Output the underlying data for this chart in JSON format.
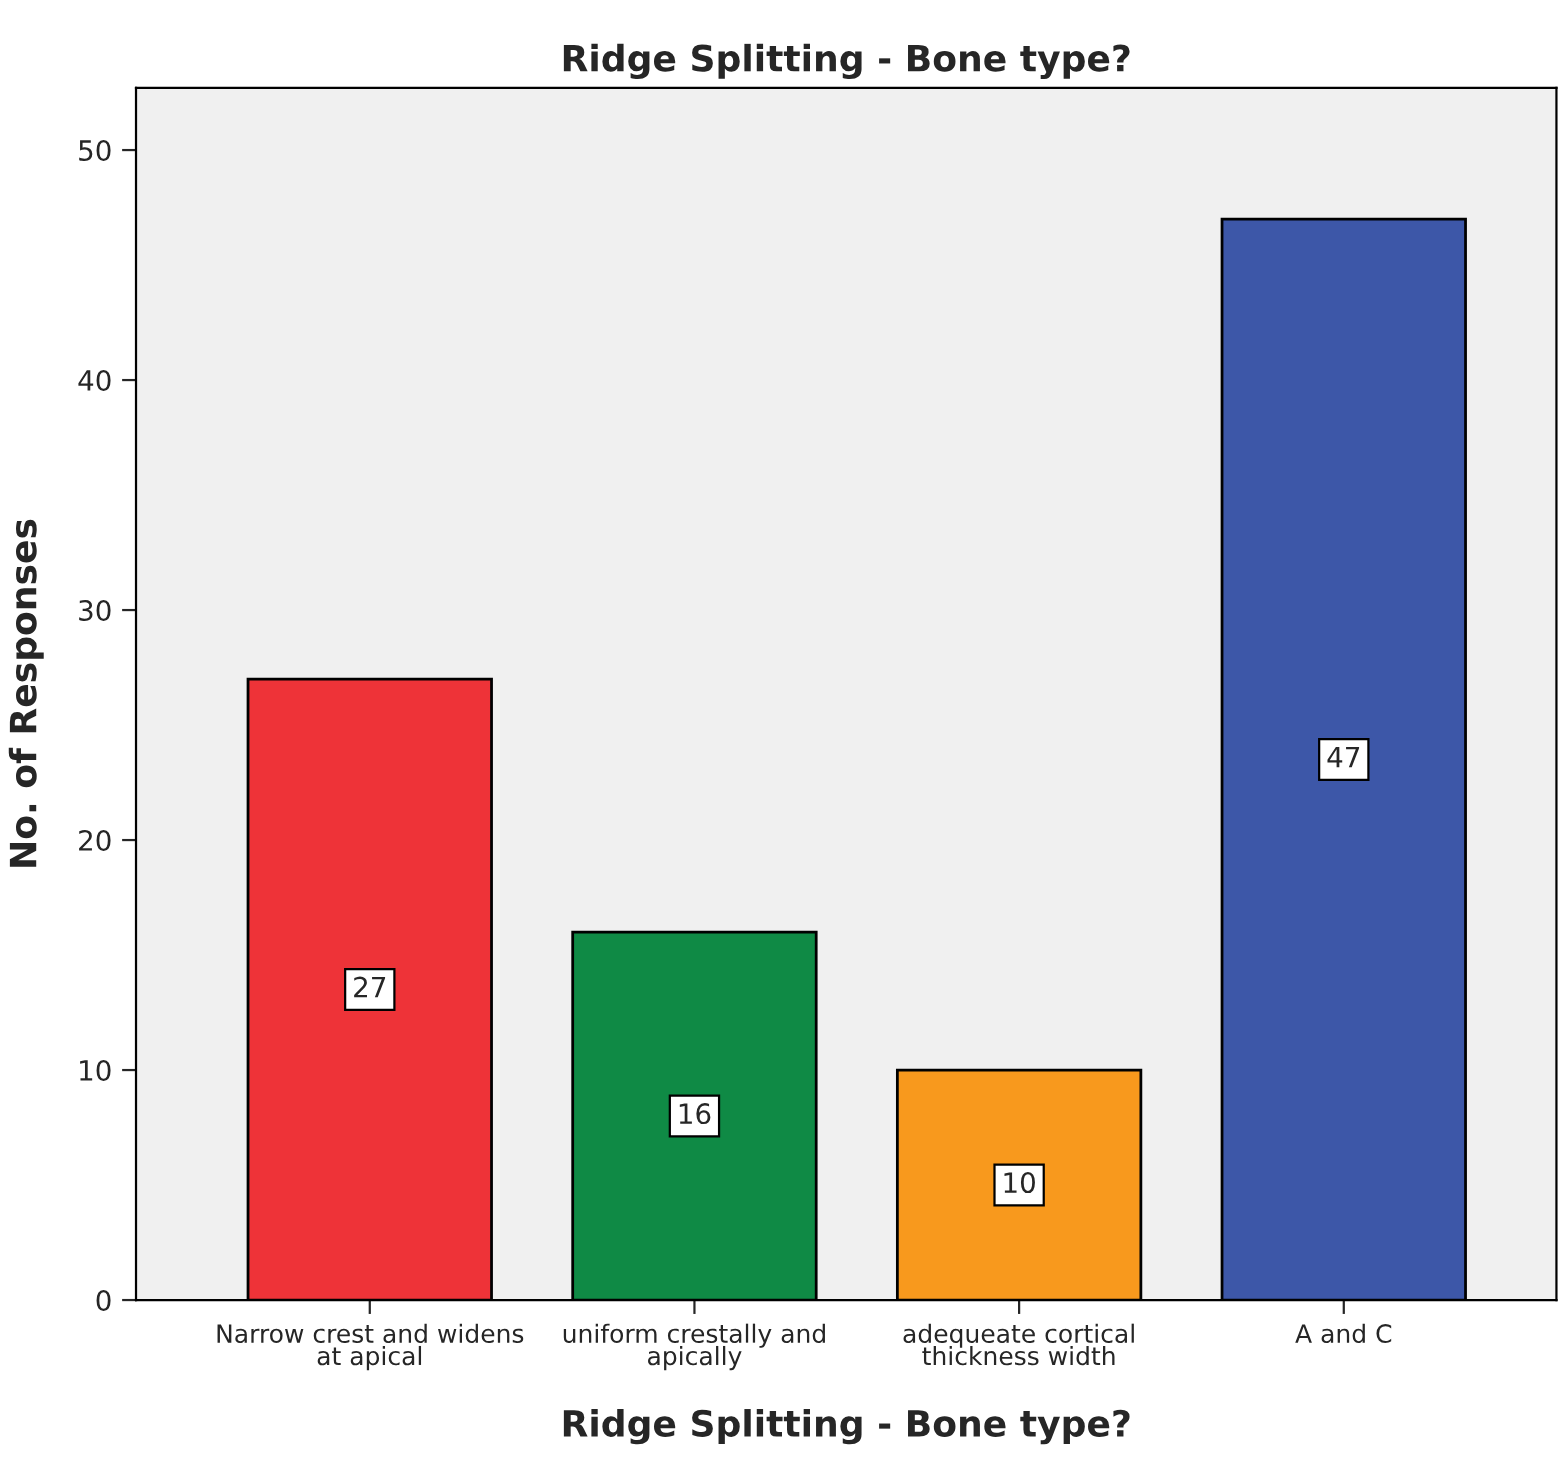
{
  "chart_data": {
    "type": "bar",
    "title": "Ridge Splitting - Bone type?",
    "xlabel": "Ridge Splitting - Bone type?",
    "ylabel": "No. of Responses",
    "categories": [
      "Narrow crest and widens\nat apical",
      "uniform crestally and\napically",
      "adequeate cortical\nthickness width",
      "A and C"
    ],
    "values": [
      27,
      16,
      10,
      47
    ],
    "colors": [
      "#ee3338",
      "#0f8a45",
      "#f8991d",
      "#3d57a8"
    ],
    "ylim": [
      0,
      52.7
    ],
    "yticks": [
      0,
      10,
      20,
      30,
      40,
      50
    ],
    "data_labels": true,
    "grid": false,
    "legend": false
  }
}
